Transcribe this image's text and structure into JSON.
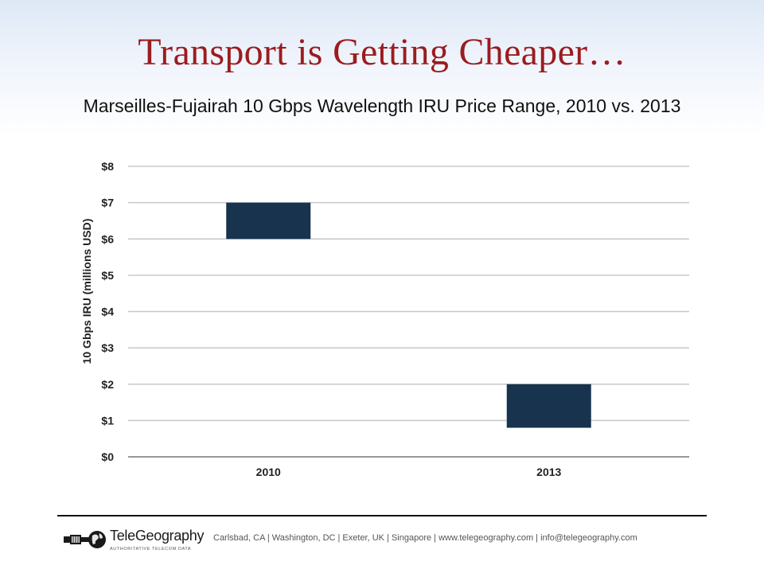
{
  "slide": {
    "title": "Transport is Getting Cheaper…"
  },
  "chart_data": {
    "type": "bar",
    "subtype": "floating-range",
    "title": "Marseilles-Fujairah 10 Gbps Wavelength IRU Price Range, 2010 vs. 2013",
    "xlabel": "",
    "ylabel": "10 Gbps IRU (millions USD)",
    "ylim": [
      0,
      8
    ],
    "yticks": [
      0,
      1,
      2,
      3,
      4,
      5,
      6,
      7,
      8
    ],
    "ytick_labels": [
      "$0",
      "$1",
      "$2",
      "$3",
      "$4",
      "$5",
      "$6",
      "$7",
      "$8"
    ],
    "categories": [
      "2010",
      "2013"
    ],
    "ranges": [
      {
        "low": 6,
        "high": 7
      },
      {
        "low": 0.8,
        "high": 2
      }
    ],
    "grid": true,
    "legend": "none",
    "bar_color": "#17334d"
  },
  "footer": {
    "logo_name": "TeleGeography",
    "logo_tagline": "AUTHORITATIVE TELECOM DATA",
    "contact": "Carlsbad, CA | Washington, DC | Exeter, UK | Singapore | www.telegeography.com | info@telegeography.com"
  }
}
